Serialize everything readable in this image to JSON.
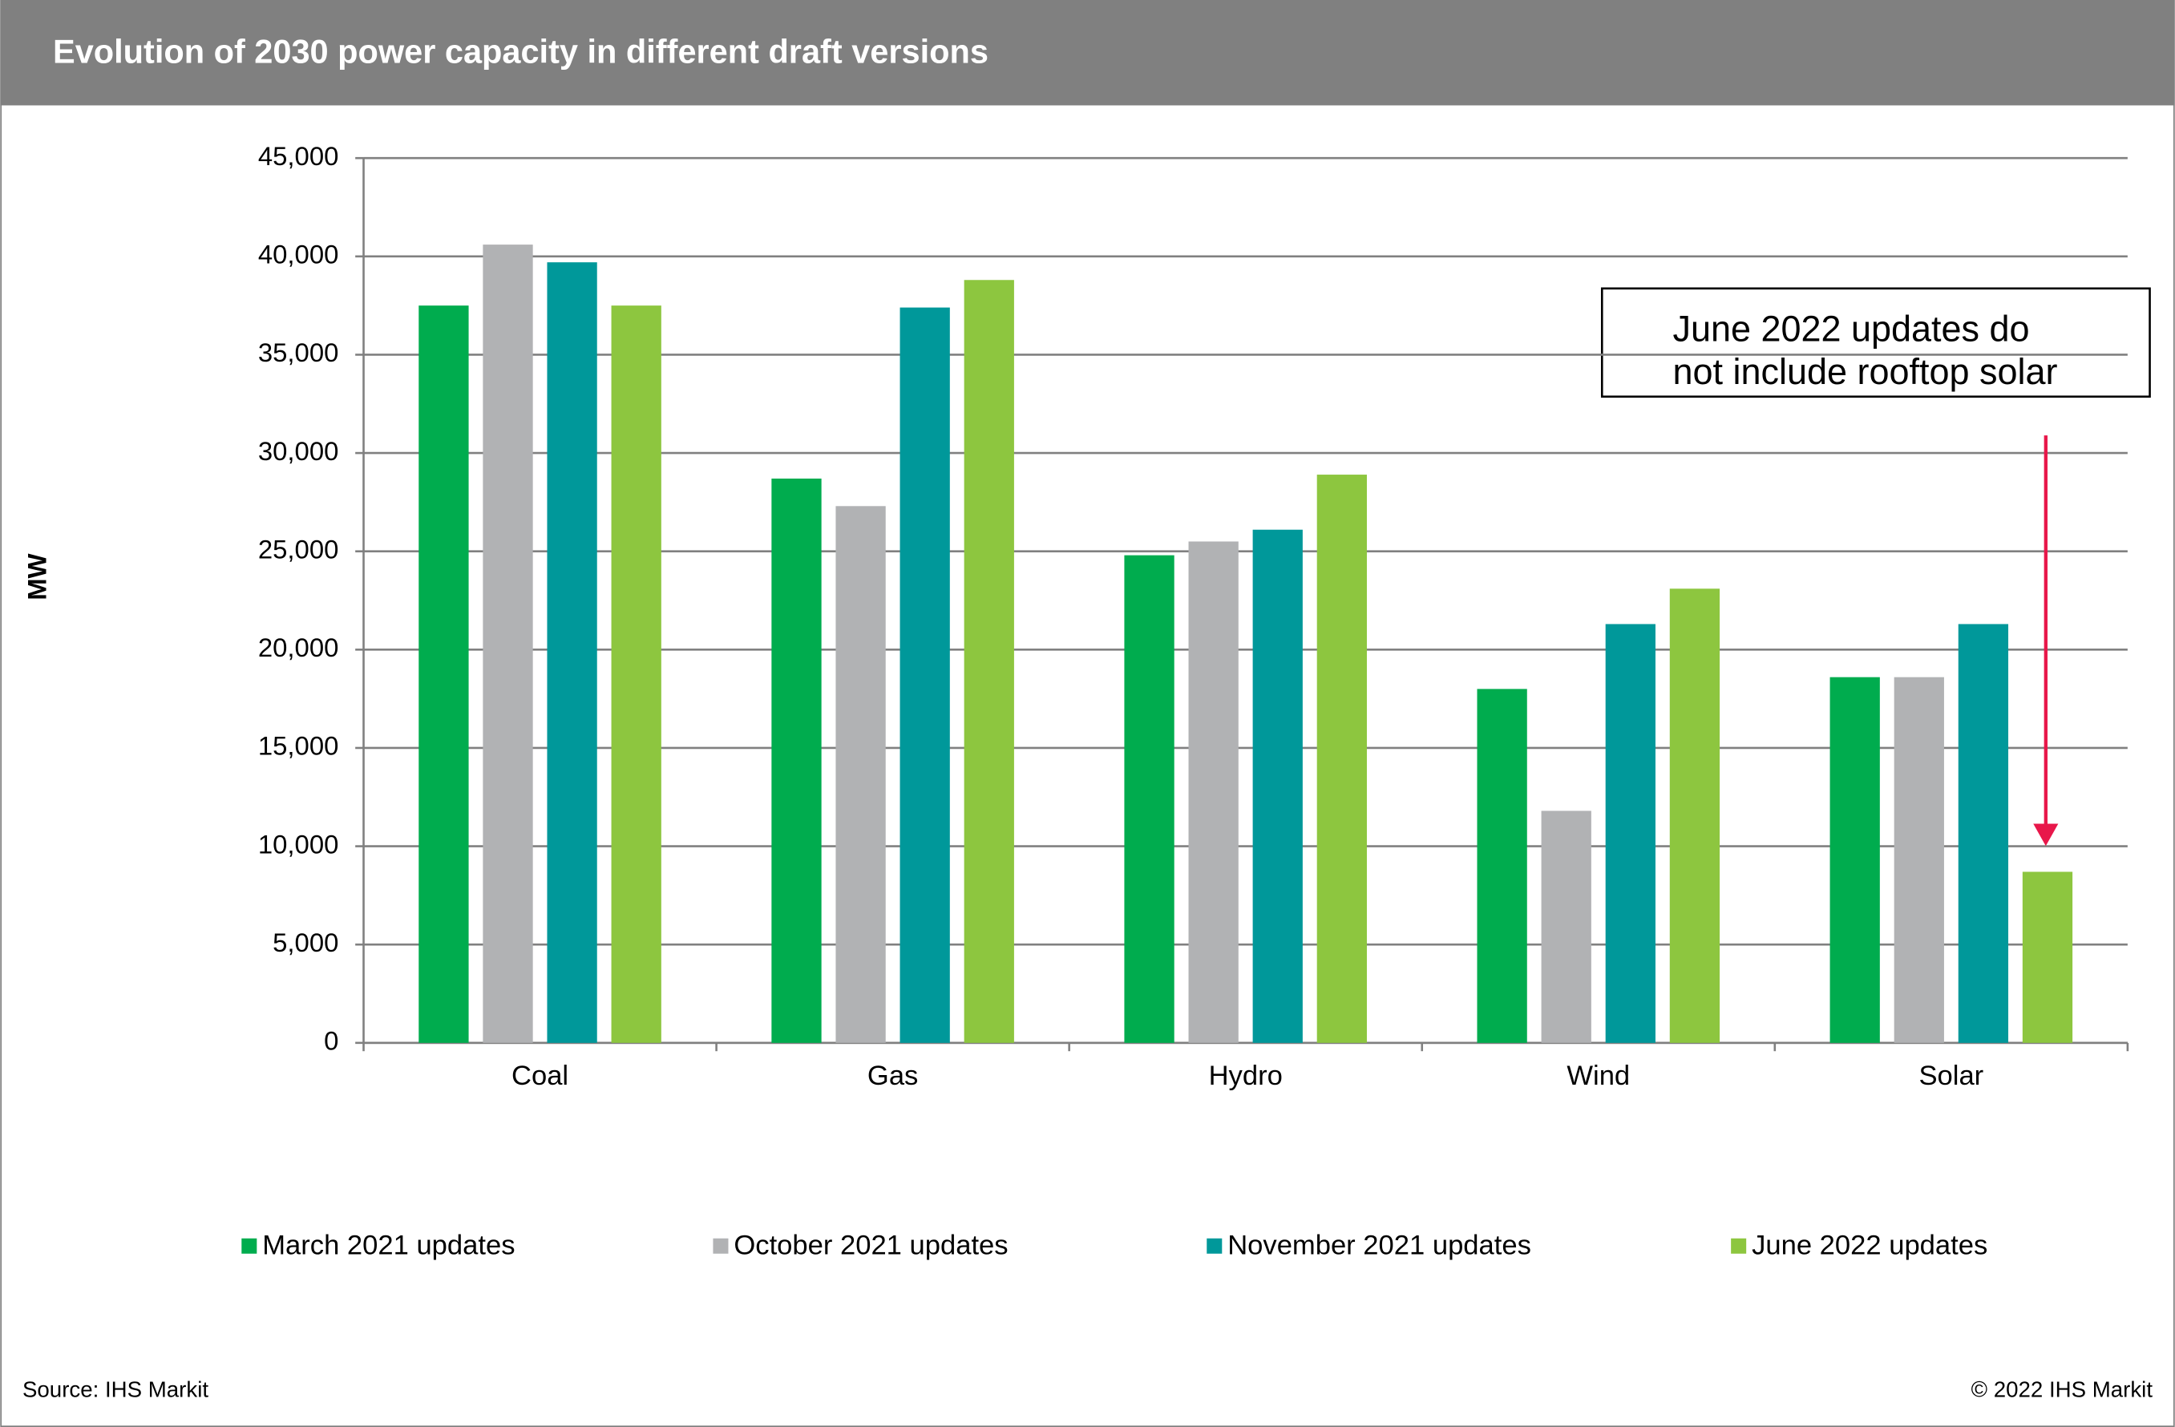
{
  "chart_data": {
    "type": "bar",
    "title": "Evolution of 2030 power capacity in different draft versions",
    "y_label": "MW",
    "categories": [
      "Coal",
      "Gas",
      "Hydro",
      "Wind",
      "Solar"
    ],
    "series": [
      {
        "name": "March 2021 updates",
        "color": "#00ac4e",
        "values": [
          37500,
          28700,
          24800,
          18000,
          18600
        ]
      },
      {
        "name": "October 2021 updates",
        "color": "#b1b2b4",
        "values": [
          40600,
          27300,
          25500,
          11800,
          18600
        ]
      },
      {
        "name": "November 2021 updates",
        "color": "#00989a",
        "values": [
          39700,
          37400,
          26100,
          21300,
          21300
        ]
      },
      {
        "name": "June 2022 updates",
        "color": "#8dc63f",
        "values": [
          37500,
          38800,
          28900,
          23100,
          8700
        ]
      }
    ],
    "ylim": [
      0,
      45000
    ],
    "yticks": [
      0,
      {
        "value": 5000,
        "label": "5,000"
      },
      {
        "value": 10000,
        "label": "10,000"
      },
      {
        "value": 15000,
        "label": "15,000"
      },
      {
        "value": 20000,
        "label": "20,000"
      },
      {
        "value": 25000,
        "label": "25,000"
      },
      {
        "value": 30000,
        "label": "30,000"
      },
      {
        "value": 35000,
        "label": "35,000"
      },
      {
        "value": 40000,
        "label": "40,000"
      },
      {
        "value": 45000,
        "label": "45,000"
      }
    ],
    "grid": true,
    "annotation": [
      "June 2022 updates do",
      "not include rooftop solar"
    ],
    "source": "Source: IHS Markit",
    "copyright": "© 2022 IHS Markit"
  }
}
